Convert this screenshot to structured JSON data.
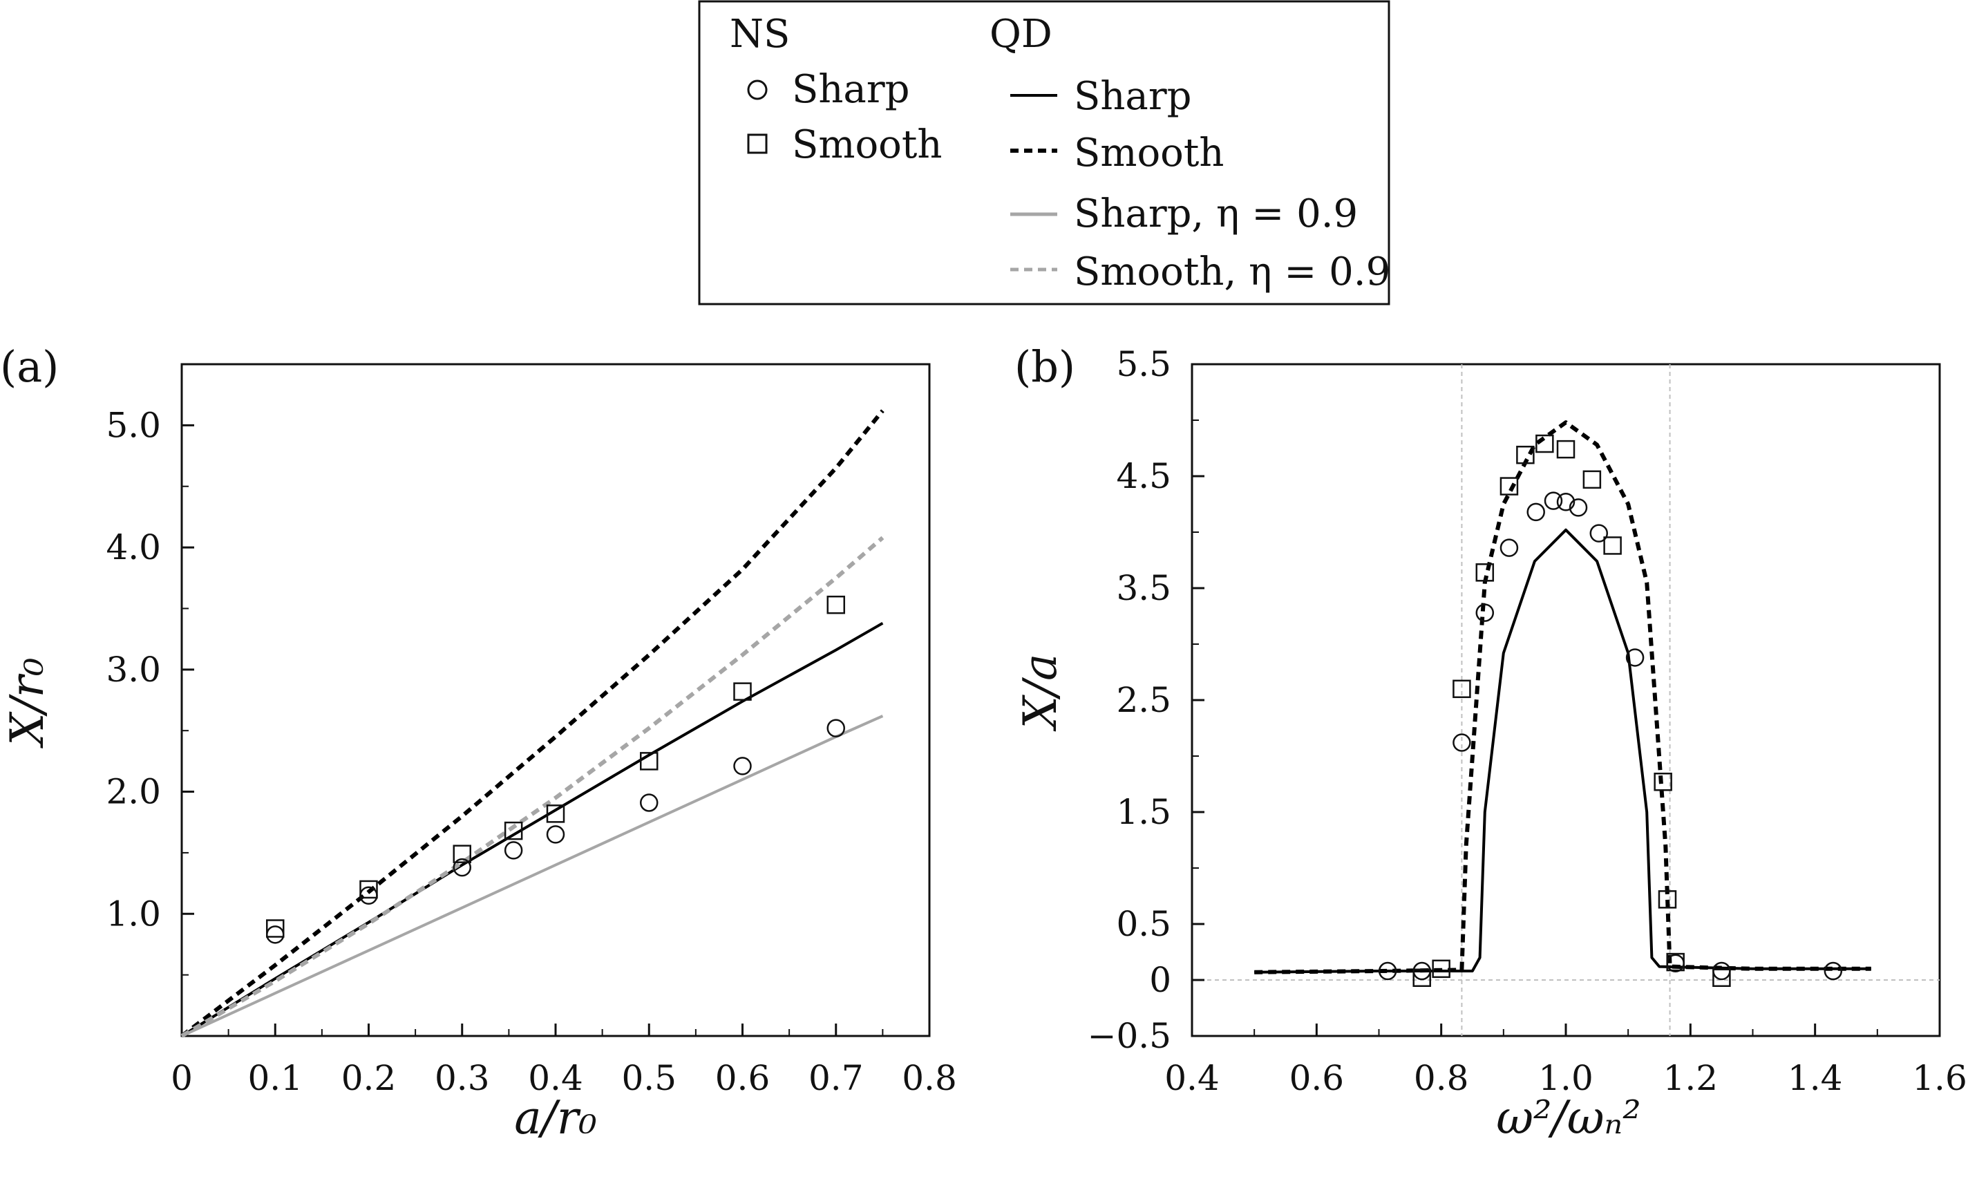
{
  "legend": {
    "ns_heading": "NS",
    "qd_heading": "QD",
    "entries": {
      "ns_sharp": "Sharp",
      "ns_smooth": "Smooth",
      "qd_sharp": "Sharp",
      "qd_smooth": "Smooth",
      "qd_sharp_eta": "Sharp, η = 0.9",
      "qd_smooth_eta": "Smooth, η = 0.9"
    }
  },
  "colors": {
    "black": "#000000",
    "grey": "#a6a6a6",
    "guide": "#c0c0c0"
  },
  "chart_data": [
    {
      "panel": "(a)",
      "type": "scatter",
      "xlabel": "a/r₀",
      "ylabel": "X/r₀",
      "xlim": [
        0,
        0.8
      ],
      "ylim": [
        0,
        5.5
      ],
      "xticks": [
        0,
        0.1,
        0.2,
        0.3,
        0.4,
        0.5,
        0.6,
        0.7,
        0.8
      ],
      "xtick_labels": [
        "0",
        "0.1",
        "0.2",
        "0.3",
        "0.4",
        "0.5",
        "0.6",
        "0.7",
        "0.8"
      ],
      "yticks": [
        1.0,
        2.0,
        3.0,
        4.0,
        5.0
      ],
      "ytick_labels": [
        "1.0",
        "2.0",
        "3.0",
        "4.0",
        "5.0"
      ],
      "series": [
        {
          "name": "NS Sharp",
          "kind": "markers",
          "marker": "circle",
          "x": [
            0.1,
            0.2,
            0.3,
            0.355,
            0.4,
            0.5,
            0.6,
            0.7
          ],
          "y": [
            0.83,
            1.15,
            1.38,
            1.52,
            1.65,
            1.91,
            2.21,
            2.52
          ]
        },
        {
          "name": "NS Smooth",
          "kind": "markers",
          "marker": "square",
          "x": [
            0.1,
            0.2,
            0.3,
            0.355,
            0.4,
            0.5,
            0.6,
            0.7
          ],
          "y": [
            0.88,
            1.2,
            1.49,
            1.68,
            1.82,
            2.25,
            2.82,
            3.53
          ]
        },
        {
          "name": "QD Sharp",
          "kind": "line",
          "color": "#000000",
          "dash": "solid",
          "x": [
            0,
            0.1,
            0.2,
            0.3,
            0.4,
            0.5,
            0.6,
            0.7,
            0.75
          ],
          "y": [
            0,
            0.47,
            0.93,
            1.4,
            1.85,
            2.3,
            2.74,
            3.16,
            3.38
          ]
        },
        {
          "name": "QD Smooth",
          "kind": "line",
          "color": "#000000",
          "dash": "dashed",
          "x": [
            0,
            0.1,
            0.2,
            0.3,
            0.4,
            0.5,
            0.6,
            0.7,
            0.75
          ],
          "y": [
            0,
            0.58,
            1.18,
            1.8,
            2.45,
            3.12,
            3.82,
            4.65,
            5.12
          ]
        },
        {
          "name": "QD Sharp, η = 0.9",
          "kind": "line",
          "color": "#a6a6a6",
          "dash": "solid",
          "x": [
            0,
            0.1,
            0.2,
            0.3,
            0.4,
            0.5,
            0.6,
            0.7,
            0.75
          ],
          "y": [
            0,
            0.35,
            0.7,
            1.05,
            1.4,
            1.75,
            2.1,
            2.45,
            2.62
          ]
        },
        {
          "name": "QD Smooth, η = 0.9",
          "kind": "line",
          "color": "#a6a6a6",
          "dash": "dashed",
          "x": [
            0,
            0.1,
            0.2,
            0.3,
            0.4,
            0.5,
            0.6,
            0.7,
            0.75
          ],
          "y": [
            0,
            0.45,
            0.92,
            1.42,
            1.95,
            2.52,
            3.12,
            3.75,
            4.08
          ]
        }
      ]
    },
    {
      "panel": "(b)",
      "type": "scatter",
      "xlabel": "ω²/ωₙ²",
      "ylabel": "X/a",
      "xlim": [
        0.4,
        1.6
      ],
      "ylim": [
        -0.5,
        5.5
      ],
      "xticks": [
        0.4,
        0.6,
        0.8,
        1.0,
        1.2,
        1.4,
        1.6
      ],
      "xtick_labels": [
        "0.4",
        "0.6",
        "0.8",
        "1.0",
        "1.2",
        "1.4",
        "1.6"
      ],
      "yticks": [
        -0.5,
        0,
        0.5,
        1.5,
        2.5,
        3.5,
        4.5,
        5.5
      ],
      "ytick_labels": [
        "−0.5",
        "0",
        "0.5",
        "1.5",
        "2.5",
        "3.5",
        "4.5",
        "5.5"
      ],
      "vlines": [
        0.833,
        1.167
      ],
      "hlines": [
        0
      ],
      "series": [
        {
          "name": "NS Sharp",
          "kind": "markers",
          "marker": "circle",
          "x": [
            0.714,
            0.769,
            0.833,
            0.87,
            0.909,
            0.952,
            0.98,
            1.0,
            1.02,
            1.053,
            1.111,
            1.176,
            1.25,
            1.429
          ],
          "y": [
            0.08,
            0.08,
            2.12,
            3.28,
            3.86,
            4.18,
            4.28,
            4.27,
            4.22,
            3.99,
            2.88,
            0.15,
            0.08,
            0.08
          ]
        },
        {
          "name": "NS Smooth",
          "kind": "markers",
          "marker": "square",
          "x": [
            0.769,
            0.8,
            0.833,
            0.87,
            0.909,
            0.935,
            0.966,
            1.0,
            1.042,
            1.075,
            1.156,
            1.163,
            1.176,
            1.25
          ],
          "y": [
            0.02,
            0.1,
            2.6,
            3.64,
            4.41,
            4.69,
            4.79,
            4.74,
            4.47,
            3.88,
            1.77,
            0.72,
            0.16,
            0.02
          ]
        },
        {
          "name": "QD Sharp",
          "kind": "line",
          "color": "#000000",
          "dash": "solid",
          "x": [
            0.5,
            0.7,
            0.85,
            0.862,
            0.87,
            0.9,
            0.95,
            1.0,
            1.05,
            1.1,
            1.13,
            1.138,
            1.15,
            1.3,
            1.49
          ],
          "y": [
            0.07,
            0.08,
            0.08,
            0.2,
            1.5,
            2.92,
            3.74,
            4.02,
            3.74,
            2.92,
            1.5,
            0.2,
            0.12,
            0.1,
            0.1
          ]
        },
        {
          "name": "QD Smooth",
          "kind": "line",
          "color": "#000000",
          "dash": "dashed",
          "x": [
            0.5,
            0.7,
            0.833,
            0.84,
            0.87,
            0.9,
            0.95,
            1.0,
            1.05,
            1.1,
            1.13,
            1.16,
            1.167,
            1.3,
            1.49
          ],
          "y": [
            0.07,
            0.08,
            0.09,
            1.2,
            3.55,
            4.25,
            4.78,
            4.98,
            4.78,
            4.25,
            3.55,
            1.2,
            0.12,
            0.1,
            0.1
          ]
        }
      ]
    }
  ]
}
